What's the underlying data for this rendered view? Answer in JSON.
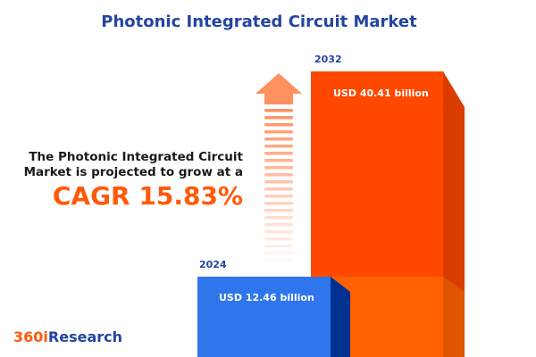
{
  "title": "Photonic Integrated Circuit Market",
  "description": [
    "The Photonic Integrated Circuit",
    "Market is projected to grow at a"
  ],
  "cagr_text": "CAGR 15.83%",
  "logo": {
    "part1": "360i",
    "part2": "Research"
  },
  "colors": {
    "title": "#2344a0",
    "bar_2024": "#2f76ec",
    "bar_2032": "#ff4800",
    "accent": "#ff5a0a"
  },
  "chart_data": {
    "type": "bar",
    "categories": [
      "2024",
      "2032"
    ],
    "values": [
      12.46,
      40.41
    ],
    "data_labels": [
      "USD 12.46 billion",
      "USD 40.41 billion"
    ],
    "title": "Photonic Integrated Circuit Market",
    "annotation": "CAGR 15.83%",
    "unit": "USD billion"
  }
}
